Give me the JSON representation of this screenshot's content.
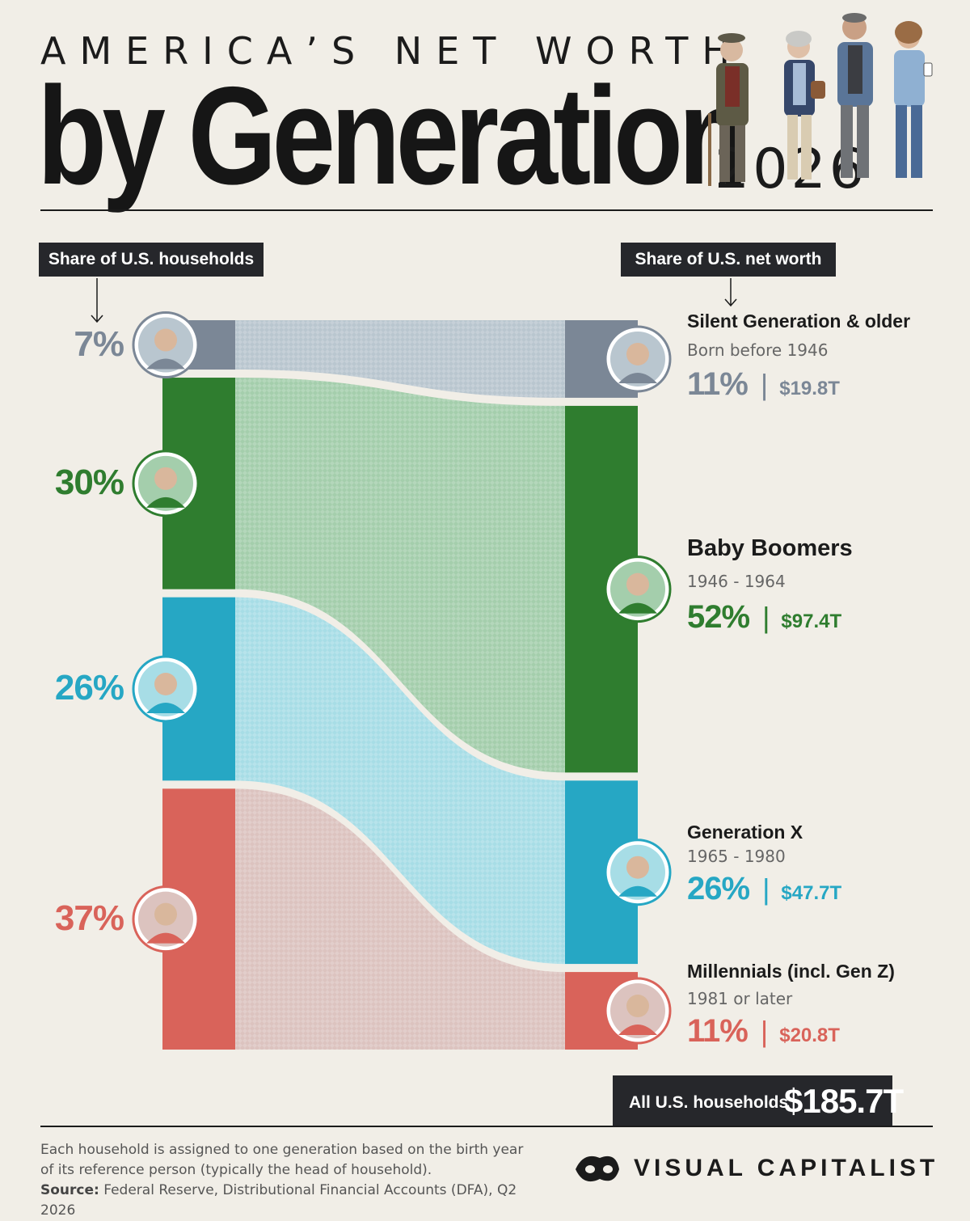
{
  "header": {
    "supertitle": "AMERICA’S NET WORTH",
    "title": "by Generation",
    "year": "2026"
  },
  "left_label": "Share of U.S. households",
  "right_label": "Share of U.S. net worth",
  "chart_data": {
    "type": "sankey",
    "unit": "%",
    "generations": [
      {
        "name": "Silent Generation & older",
        "years": "Born before 1946",
        "household_share": 7,
        "household_label": "7%",
        "networth_share": 11,
        "networth_label": "11%",
        "value": "$19.8T",
        "color": "#7b8796",
        "flow_color": "#b9c6cf"
      },
      {
        "name": "Baby Boomers",
        "years": "1946 - 1964",
        "household_share": 30,
        "household_label": "30%",
        "networth_share": 52,
        "networth_label": "52%",
        "value": "$97.4T",
        "color": "#2f7d2f",
        "flow_color": "#a4ceac"
      },
      {
        "name": "Generation X",
        "years": "1965 - 1980",
        "household_share": 26,
        "household_label": "26%",
        "networth_share": 26,
        "networth_label": "26%",
        "value": "$47.7T",
        "color": "#26a7c4",
        "flow_color": "#a7dde6"
      },
      {
        "name": "Millennials (incl. Gen Z)",
        "years": "1981 or later",
        "household_share": 37,
        "household_label": "37%",
        "networth_share": 11,
        "networth_label": "11%",
        "value": "$20.8T",
        "color": "#d9635a",
        "flow_color": "#dcc3bf"
      }
    ]
  },
  "total": {
    "label": "All U.S. households",
    "value": "$185.7T"
  },
  "footnote": {
    "text": "Each household is assigned to one generation based on the birth year of its reference person (typically the head of household).",
    "source_label": "Source:",
    "source_text": "Federal Reserve, Distributional Financial Accounts (DFA), Q2 2026"
  },
  "brand": "VISUAL CAPITALIST"
}
